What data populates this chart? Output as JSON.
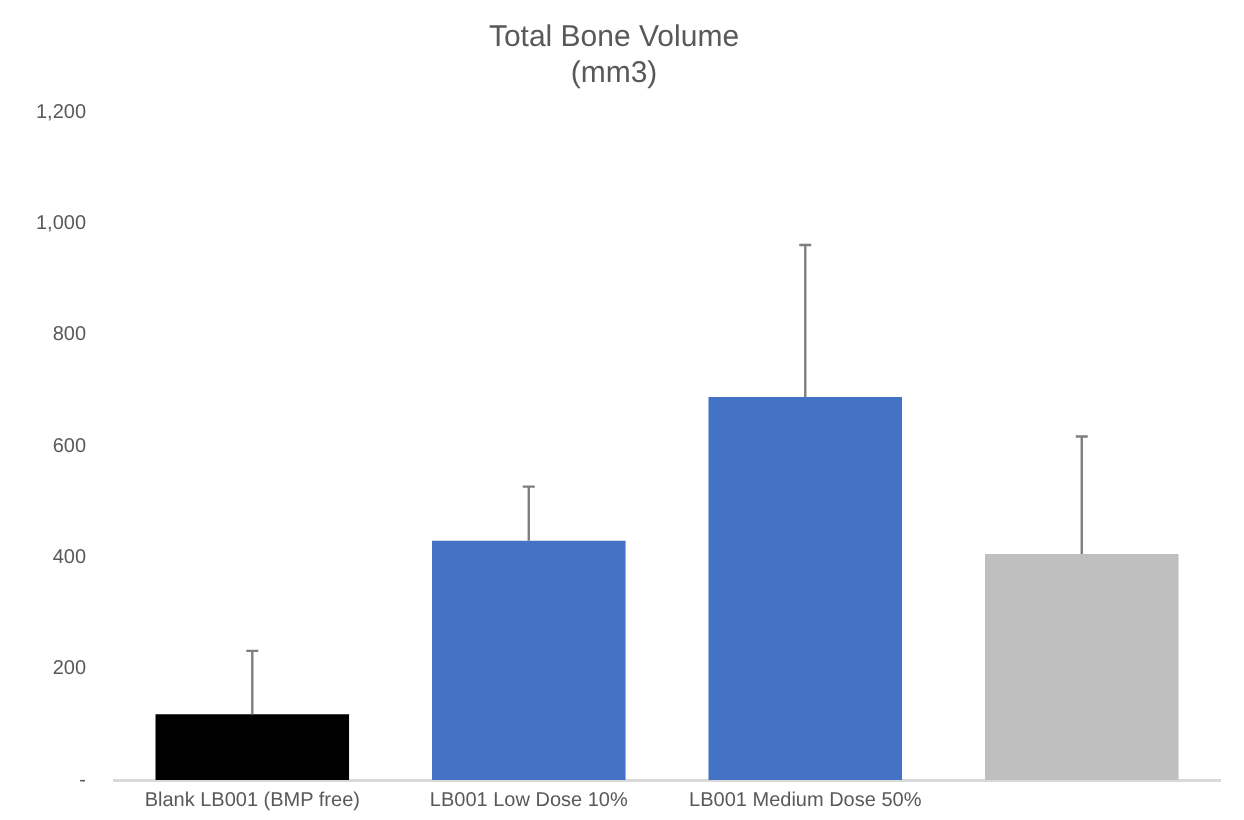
{
  "chart_data": {
    "type": "bar",
    "title": "Total Bone Volume",
    "subtitle": "(mm3)",
    "categories": [
      "Blank LB001 (BMP free)",
      "LB001 Low Dose 10%",
      "LB001 Medium Dose 50%",
      null
    ],
    "values": [
      118,
      430,
      688,
      406
    ],
    "colors": [
      "#000000",
      "#4472c4",
      "#4472c4",
      "#bfbfbf"
    ],
    "errors": [
      [
        118,
        232
      ],
      [
        430,
        527
      ],
      [
        688,
        961
      ],
      [
        406,
        617
      ]
    ],
    "ylim": [
      0,
      1200
    ],
    "yticks": [
      {
        "value": 0,
        "label": "-"
      },
      200,
      400,
      600,
      800,
      {
        "value": 1000,
        "label": "1,000"
      },
      {
        "value": 1200,
        "label": "1,200"
      }
    ],
    "grid": false,
    "legend": false
  }
}
